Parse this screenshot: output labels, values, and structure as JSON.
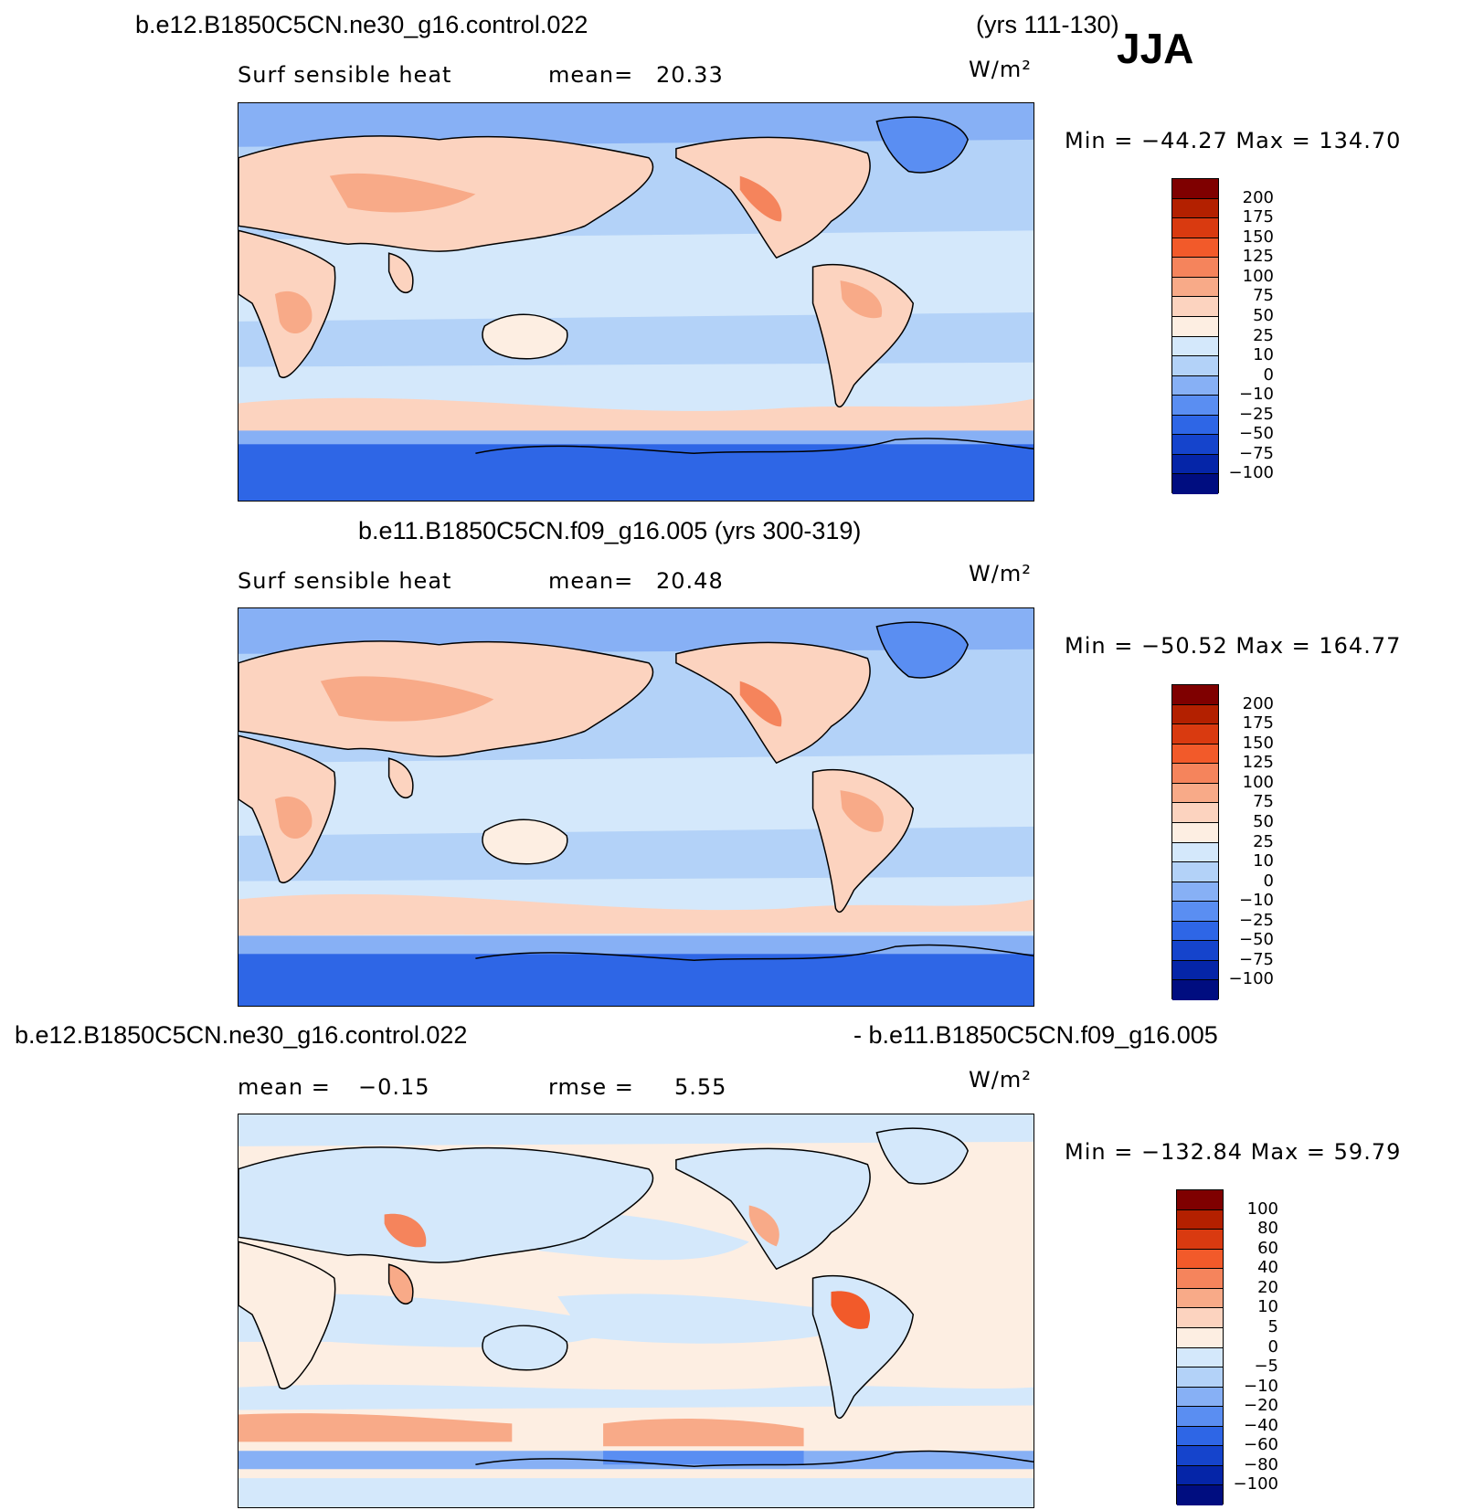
{
  "season": "JJA",
  "panels": [
    {
      "title": "b.e12.B1850C5CN.ne30_g16.control.022",
      "title_right": "(yrs 111-130)",
      "left_label": "Surf  sensible  heat",
      "stat_label": "mean=",
      "stat_value": "20.33",
      "units": "W/m²",
      "minmax": "Min  =  −44.27  Max  =  134.70",
      "levels": [
        "200",
        "175",
        "150",
        "125",
        "100",
        "75",
        "50",
        "25",
        "10",
        "0",
        "−10",
        "−25",
        "−50",
        "−75",
        "−100"
      ]
    },
    {
      "title": "b.e11.B1850C5CN.f09_g16.005 (yrs 300-319)",
      "left_label": "Surf  sensible  heat",
      "stat_label": "mean=",
      "stat_value": "20.48",
      "units": "W/m²",
      "minmax": "Min  =  −50.52  Max  =  164.77",
      "levels": [
        "200",
        "175",
        "150",
        "125",
        "100",
        "75",
        "50",
        "25",
        "10",
        "0",
        "−10",
        "−25",
        "−50",
        "−75",
        "−100"
      ]
    },
    {
      "title": "b.e12.B1850C5CN.ne30_g16.control.022",
      "title_right": "- b.e11.B1850C5CN.f09_g16.005",
      "mean_label": "mean  =",
      "mean_value": "−0.15",
      "rmse_label": "rmse  =",
      "rmse_value": "5.55",
      "units": "W/m²",
      "minmax": "Min  =  −132.84  Max  =    59.79",
      "levels": [
        "100",
        "80",
        "60",
        "40",
        "20",
        "10",
        "5",
        "0",
        "−5",
        "−10",
        "−20",
        "−40",
        "−60",
        "−80",
        "−100"
      ]
    }
  ],
  "colors": {
    "scale16": [
      "#7f0000",
      "#b32000",
      "#d93a10",
      "#f25a2a",
      "#f5845c",
      "#f8aa88",
      "#fcd3bf",
      "#fdeee2",
      "#d4e8fb",
      "#b3d2f8",
      "#87b0f5",
      "#5a8ef2",
      "#2e66e6",
      "#1544cc",
      "#0525a8",
      "#000d80"
    ]
  }
}
